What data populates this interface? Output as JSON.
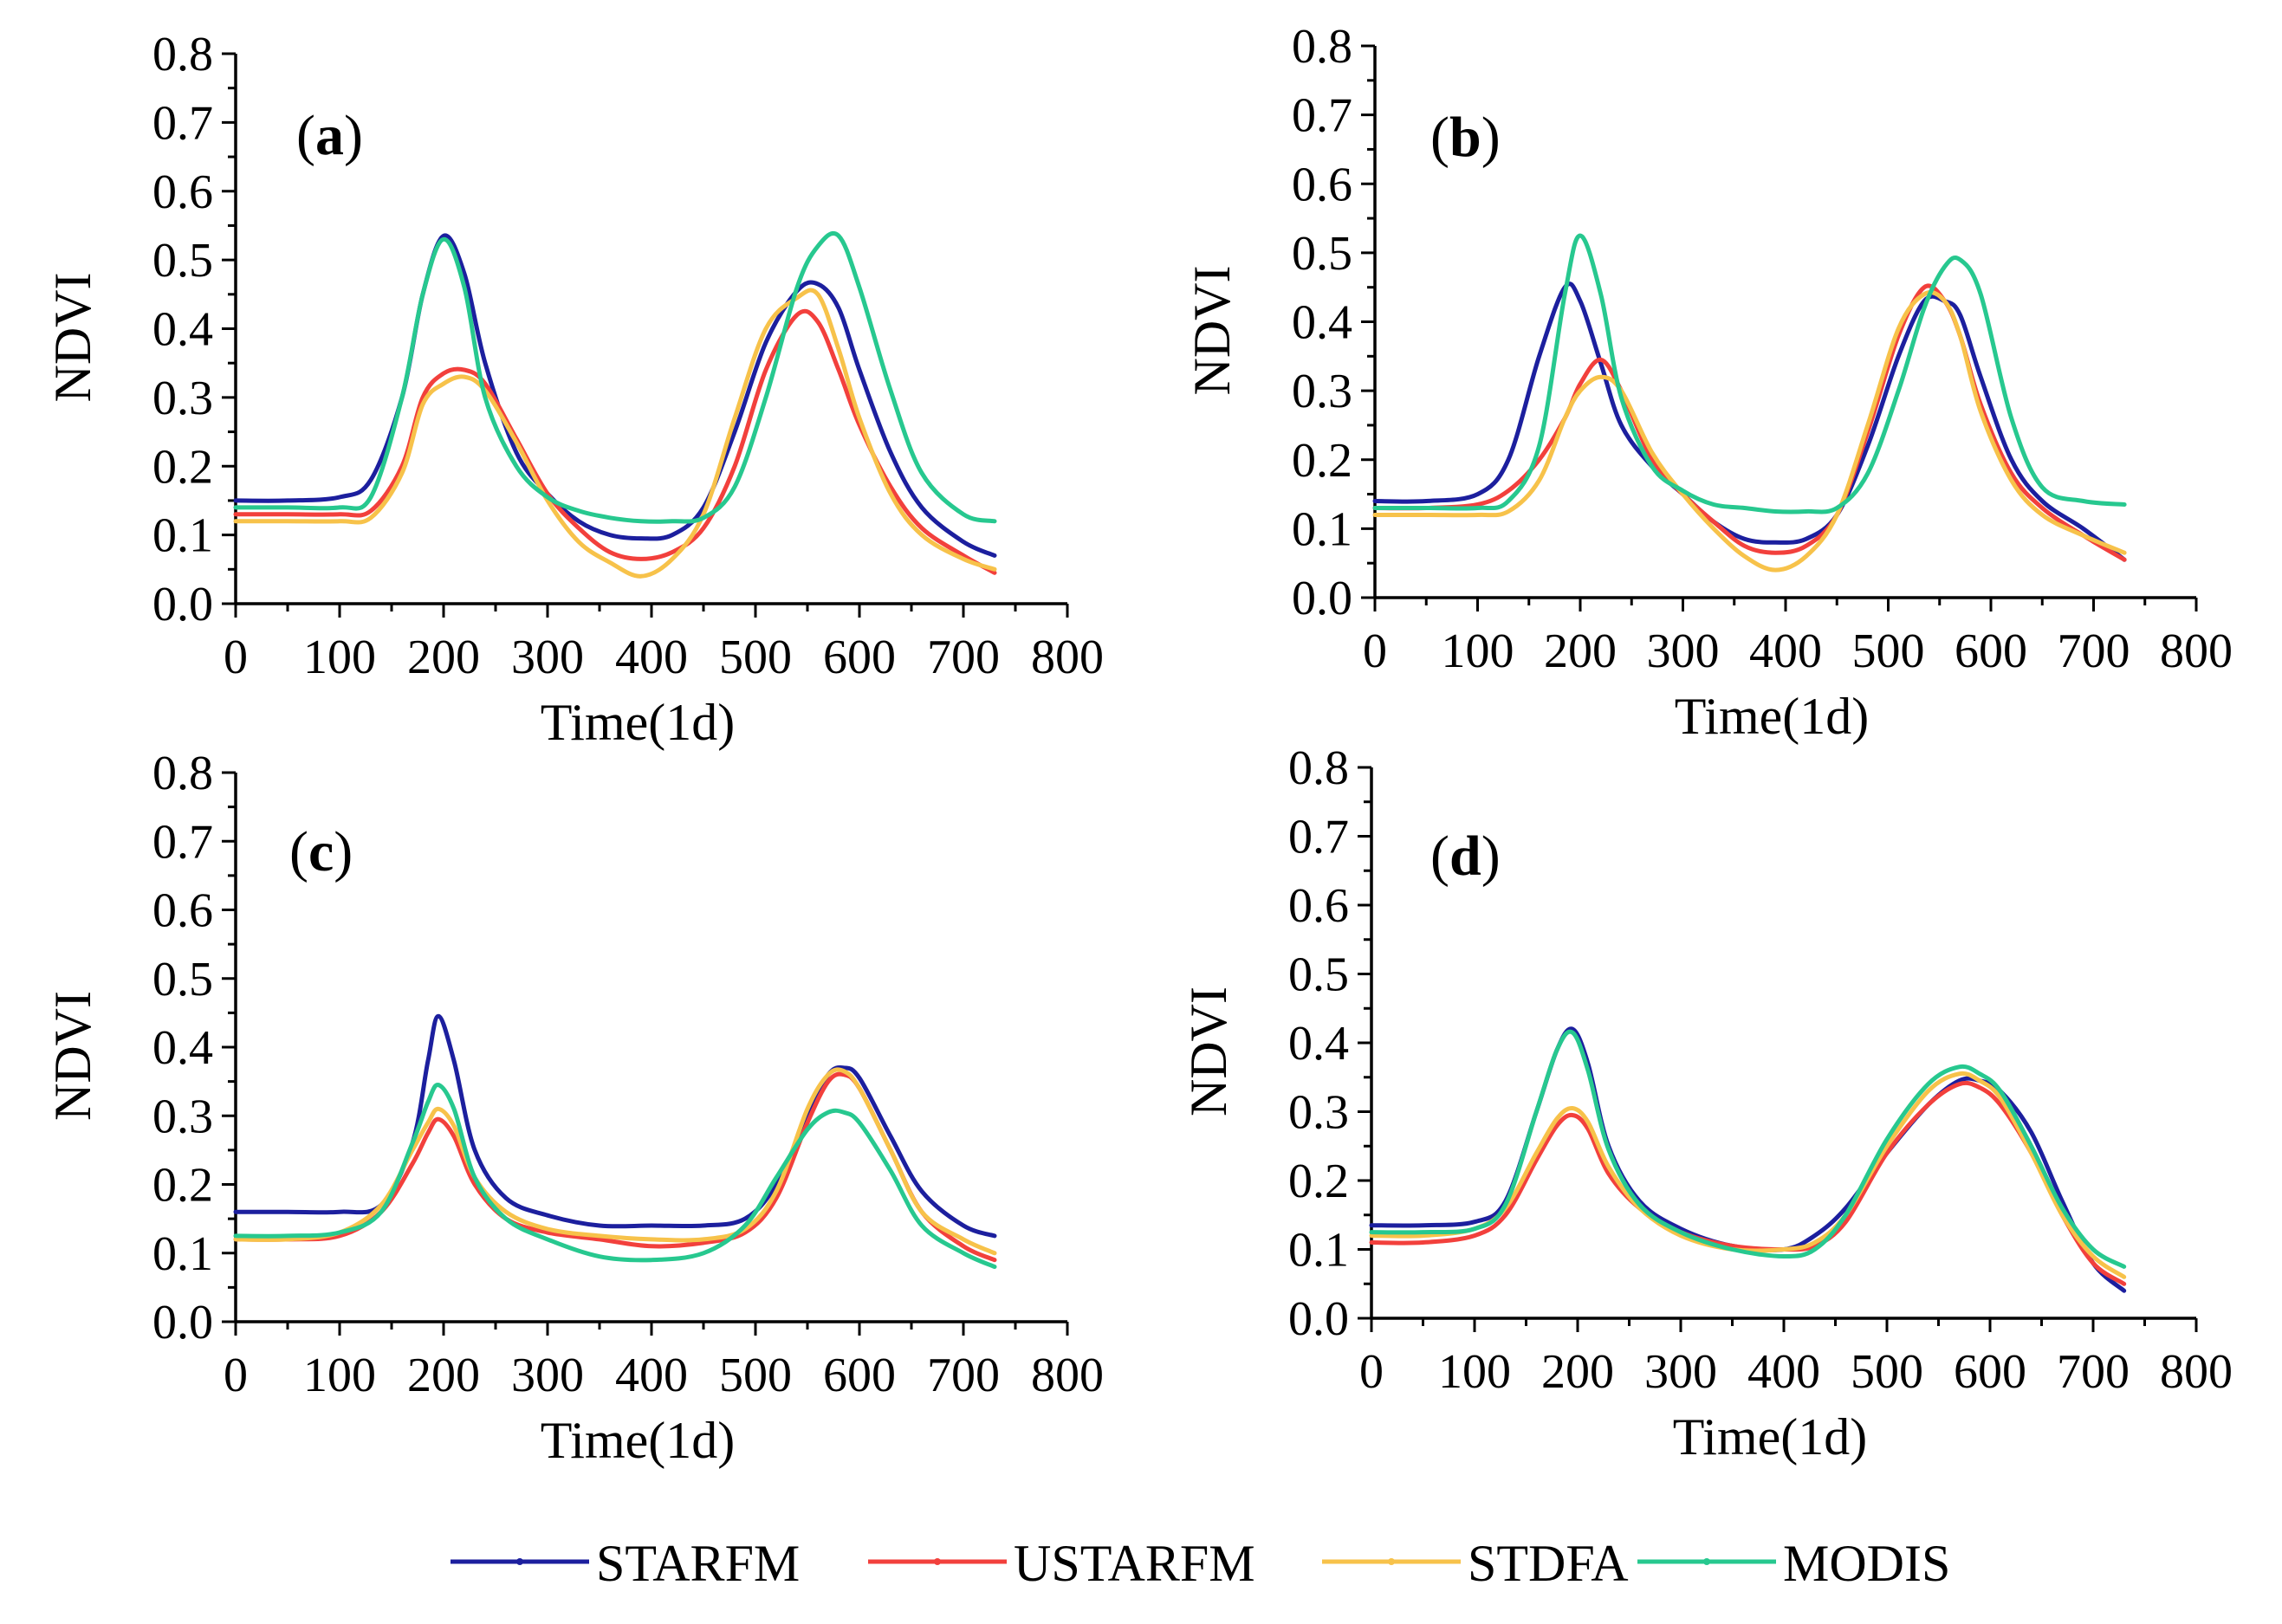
{
  "figure": {
    "legend": [
      {
        "name": "STARFM",
        "color": "#1c1f9e"
      },
      {
        "name": "USTARFM",
        "color": "#f2403c"
      },
      {
        "name": "STDFA",
        "color": "#f7c24a"
      },
      {
        "name": "MODIS",
        "color": "#27c88f"
      }
    ]
  },
  "chart_data": [
    {
      "type": "line",
      "panel_label": "a",
      "xlabel": "Time(1d)",
      "ylabel": "NDVI",
      "xlim": [
        0,
        800
      ],
      "ylim": [
        0,
        0.8
      ],
      "xticks": [
        "0",
        "100",
        "200",
        "300",
        "400",
        "500",
        "600",
        "700",
        "800"
      ],
      "yticks": [
        "0.0",
        "0.1",
        "0.2",
        "0.3",
        "0.4",
        "0.5",
        "0.6",
        "0.7",
        "0.8"
      ],
      "x": [
        0,
        50,
        100,
        130,
        160,
        180,
        200,
        220,
        240,
        270,
        300,
        330,
        360,
        390,
        420,
        450,
        480,
        510,
        540,
        560,
        580,
        600,
        630,
        660,
        700,
        730
      ],
      "series": [
        {
          "name": "STARFM",
          "values": [
            0.15,
            0.15,
            0.155,
            0.18,
            0.3,
            0.45,
            0.535,
            0.48,
            0.35,
            0.22,
            0.16,
            0.12,
            0.1,
            0.095,
            0.1,
            0.14,
            0.25,
            0.38,
            0.455,
            0.465,
            0.43,
            0.34,
            0.22,
            0.14,
            0.09,
            0.07
          ]
        },
        {
          "name": "USTARFM",
          "values": [
            0.13,
            0.13,
            0.13,
            0.135,
            0.2,
            0.3,
            0.335,
            0.34,
            0.32,
            0.24,
            0.16,
            0.11,
            0.075,
            0.065,
            0.075,
            0.11,
            0.2,
            0.34,
            0.42,
            0.41,
            0.34,
            0.26,
            0.17,
            0.11,
            0.07,
            0.045
          ]
        },
        {
          "name": "STDFA",
          "values": [
            0.12,
            0.12,
            0.12,
            0.125,
            0.19,
            0.29,
            0.32,
            0.33,
            0.31,
            0.235,
            0.15,
            0.09,
            0.06,
            0.04,
            0.065,
            0.13,
            0.27,
            0.4,
            0.445,
            0.45,
            0.37,
            0.27,
            0.16,
            0.1,
            0.065,
            0.05
          ]
        },
        {
          "name": "MODIS",
          "values": [
            0.14,
            0.14,
            0.14,
            0.155,
            0.3,
            0.45,
            0.53,
            0.46,
            0.3,
            0.2,
            0.155,
            0.135,
            0.125,
            0.12,
            0.12,
            0.125,
            0.17,
            0.3,
            0.46,
            0.52,
            0.535,
            0.46,
            0.31,
            0.19,
            0.13,
            0.12
          ]
        }
      ]
    },
    {
      "type": "line",
      "panel_label": "b",
      "xlabel": "Time(1d)",
      "ylabel": "NDVI",
      "xlim": [
        0,
        800
      ],
      "ylim": [
        0,
        0.8
      ],
      "xticks": [
        "0",
        "100",
        "200",
        "300",
        "400",
        "500",
        "600",
        "700",
        "800"
      ],
      "yticks": [
        "0.0",
        "0.1",
        "0.2",
        "0.3",
        "0.4",
        "0.5",
        "0.6",
        "0.7",
        "0.8"
      ],
      "x": [
        0,
        50,
        100,
        130,
        160,
        185,
        200,
        220,
        240,
        270,
        300,
        330,
        360,
        390,
        420,
        450,
        480,
        510,
        535,
        555,
        570,
        590,
        620,
        650,
        690,
        730
      ],
      "series": [
        {
          "name": "STARFM",
          "values": [
            0.14,
            0.14,
            0.15,
            0.2,
            0.35,
            0.45,
            0.43,
            0.34,
            0.25,
            0.19,
            0.15,
            0.11,
            0.085,
            0.08,
            0.085,
            0.12,
            0.22,
            0.35,
            0.43,
            0.43,
            0.41,
            0.32,
            0.2,
            0.14,
            0.1,
            0.055
          ]
        },
        {
          "name": "USTARFM",
          "values": [
            0.13,
            0.13,
            0.135,
            0.155,
            0.2,
            0.26,
            0.31,
            0.345,
            0.3,
            0.2,
            0.15,
            0.11,
            0.075,
            0.065,
            0.075,
            0.12,
            0.24,
            0.38,
            0.45,
            0.43,
            0.38,
            0.28,
            0.18,
            0.13,
            0.09,
            0.055
          ]
        },
        {
          "name": "STDFA",
          "values": [
            0.12,
            0.12,
            0.12,
            0.125,
            0.17,
            0.26,
            0.3,
            0.32,
            0.3,
            0.21,
            0.15,
            0.1,
            0.06,
            0.04,
            0.06,
            0.12,
            0.25,
            0.39,
            0.44,
            0.43,
            0.38,
            0.27,
            0.17,
            0.12,
            0.09,
            0.065
          ]
        },
        {
          "name": "MODIS",
          "values": [
            0.13,
            0.13,
            0.13,
            0.14,
            0.22,
            0.44,
            0.525,
            0.44,
            0.29,
            0.19,
            0.155,
            0.135,
            0.13,
            0.125,
            0.125,
            0.13,
            0.18,
            0.3,
            0.42,
            0.48,
            0.49,
            0.44,
            0.26,
            0.16,
            0.14,
            0.135
          ]
        }
      ]
    },
    {
      "type": "line",
      "panel_label": "c",
      "xlabel": "Time(1d)",
      "ylabel": "NDVI",
      "xlim": [
        0,
        800
      ],
      "ylim": [
        0,
        0.8
      ],
      "xticks": [
        "0",
        "100",
        "200",
        "300",
        "400",
        "500",
        "600",
        "700",
        "800"
      ],
      "yticks": [
        "0.0",
        "0.1",
        "0.2",
        "0.3",
        "0.4",
        "0.5",
        "0.6",
        "0.7",
        "0.8"
      ],
      "x": [
        0,
        50,
        100,
        140,
        170,
        185,
        195,
        210,
        230,
        260,
        300,
        350,
        400,
        450,
        490,
        520,
        550,
        570,
        585,
        600,
        630,
        660,
        700,
        730
      ],
      "series": [
        {
          "name": "STARFM",
          "values": [
            0.16,
            0.16,
            0.16,
            0.17,
            0.26,
            0.38,
            0.445,
            0.38,
            0.25,
            0.18,
            0.155,
            0.14,
            0.14,
            0.14,
            0.15,
            0.2,
            0.3,
            0.36,
            0.37,
            0.355,
            0.27,
            0.19,
            0.14,
            0.125
          ]
        },
        {
          "name": "USTARFM",
          "values": [
            0.12,
            0.12,
            0.125,
            0.16,
            0.23,
            0.275,
            0.295,
            0.27,
            0.2,
            0.15,
            0.13,
            0.12,
            0.11,
            0.115,
            0.13,
            0.18,
            0.29,
            0.35,
            0.36,
            0.34,
            0.25,
            0.16,
            0.11,
            0.09
          ]
        },
        {
          "name": "STDFA",
          "values": [
            0.12,
            0.12,
            0.13,
            0.17,
            0.25,
            0.29,
            0.31,
            0.285,
            0.21,
            0.16,
            0.135,
            0.125,
            0.12,
            0.12,
            0.135,
            0.19,
            0.31,
            0.36,
            0.365,
            0.34,
            0.25,
            0.16,
            0.12,
            0.1
          ]
        },
        {
          "name": "MODIS",
          "values": [
            0.125,
            0.125,
            0.13,
            0.16,
            0.26,
            0.32,
            0.345,
            0.31,
            0.21,
            0.15,
            0.12,
            0.095,
            0.09,
            0.1,
            0.14,
            0.21,
            0.28,
            0.305,
            0.305,
            0.29,
            0.22,
            0.14,
            0.1,
            0.08
          ]
        }
      ]
    },
    {
      "type": "line",
      "panel_label": "d",
      "xlabel": "Time(1d)",
      "ylabel": "NDVI",
      "xlim": [
        0,
        800
      ],
      "ylim": [
        0,
        0.8
      ],
      "xticks": [
        "0",
        "100",
        "200",
        "300",
        "400",
        "500",
        "600",
        "700",
        "800"
      ],
      "yticks": [
        "0.0",
        "0.1",
        "0.2",
        "0.3",
        "0.4",
        "0.5",
        "0.6",
        "0.7",
        "0.8"
      ],
      "x": [
        0,
        50,
        100,
        130,
        160,
        180,
        195,
        210,
        230,
        260,
        300,
        350,
        400,
        430,
        460,
        500,
        540,
        570,
        590,
        610,
        640,
        670,
        700,
        730
      ],
      "series": [
        {
          "name": "STARFM",
          "values": [
            0.135,
            0.135,
            0.14,
            0.17,
            0.3,
            0.39,
            0.42,
            0.37,
            0.25,
            0.17,
            0.13,
            0.105,
            0.1,
            0.12,
            0.16,
            0.24,
            0.31,
            0.345,
            0.345,
            0.33,
            0.27,
            0.17,
            0.08,
            0.04
          ]
        },
        {
          "name": "USTARFM",
          "values": [
            0.11,
            0.11,
            0.12,
            0.15,
            0.23,
            0.28,
            0.295,
            0.275,
            0.21,
            0.16,
            0.125,
            0.105,
            0.1,
            0.105,
            0.14,
            0.24,
            0.31,
            0.34,
            0.335,
            0.31,
            0.24,
            0.15,
            0.08,
            0.05
          ]
        },
        {
          "name": "STDFA",
          "values": [
            0.12,
            0.12,
            0.13,
            0.16,
            0.24,
            0.29,
            0.305,
            0.285,
            0.22,
            0.16,
            0.12,
            0.1,
            0.1,
            0.11,
            0.15,
            0.25,
            0.33,
            0.355,
            0.345,
            0.32,
            0.24,
            0.15,
            0.09,
            0.06
          ]
        },
        {
          "name": "MODIS",
          "values": [
            0.125,
            0.125,
            0.13,
            0.165,
            0.3,
            0.39,
            0.415,
            0.36,
            0.245,
            0.165,
            0.125,
            0.1,
            0.09,
            0.1,
            0.15,
            0.26,
            0.34,
            0.365,
            0.355,
            0.33,
            0.25,
            0.16,
            0.1,
            0.075
          ]
        }
      ]
    }
  ]
}
